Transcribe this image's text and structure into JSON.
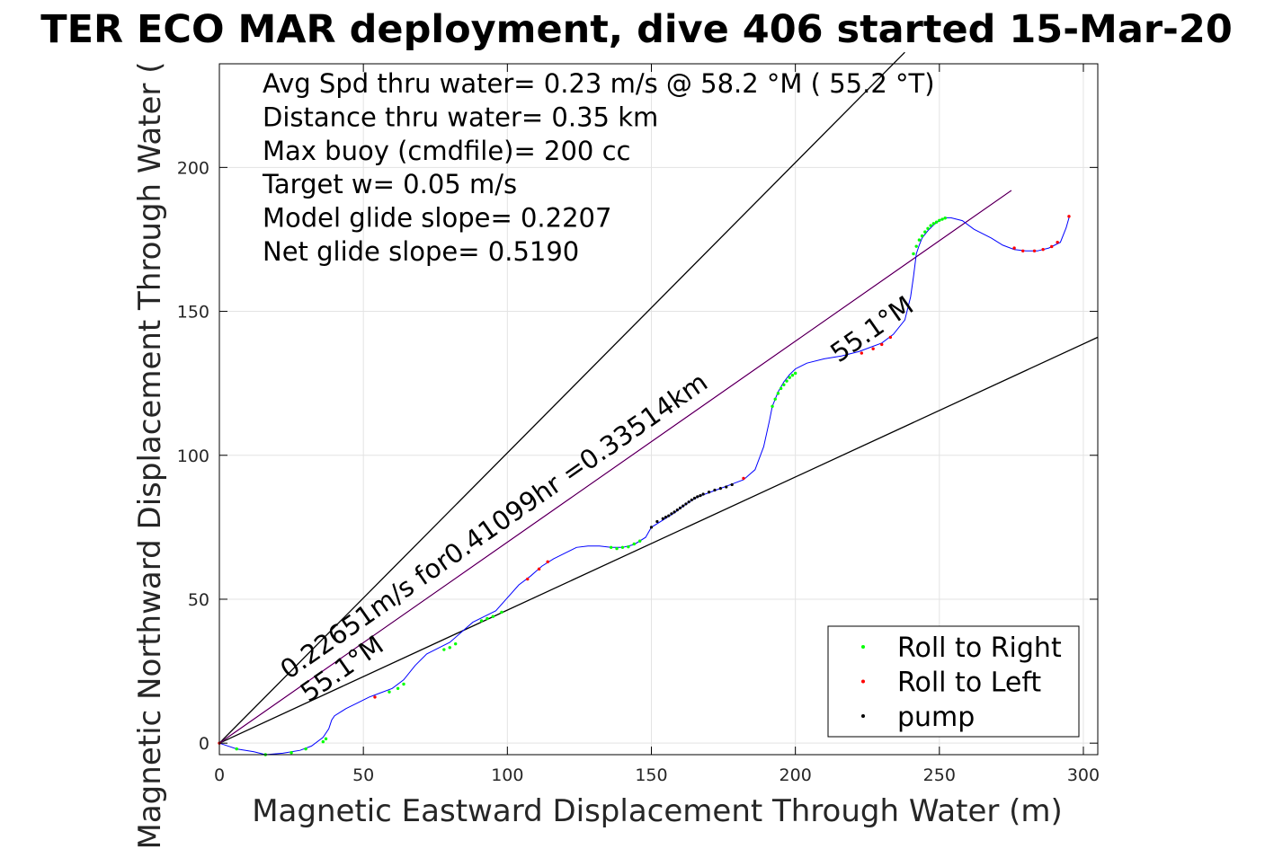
{
  "chart_data": {
    "type": "line",
    "title": "TER ECO MAR deployment, dive 406 started 15-Mar-20",
    "xlabel": "Magnetic Eastward Displacement Through Water (m)",
    "ylabel": "Magnetic Northward Displacement Through Water (",
    "xlim": [
      0,
      305
    ],
    "ylim": [
      -4,
      236
    ],
    "xticks": [
      0,
      50,
      100,
      150,
      200,
      250,
      300
    ],
    "yticks": [
      0,
      50,
      100,
      150,
      200
    ],
    "grid": true,
    "legend_position": "bottom-right",
    "stats": [
      "Avg Spd thru water=  0.23 m/s @  58.2 °M ( 55.2 °T)",
      "Distance thru water=  0.35 km",
      "Max buoy (cmdfile)= 200 cc",
      "Target w= 0.05 m/s",
      "Model glide slope= 0.2207",
      "Net glide slope= 0.5190"
    ],
    "annotations": [
      {
        "text": "0.22651m/s for0.41099hr =0.33514km",
        "x": 24,
        "y": 22,
        "angle": 34.9
      },
      {
        "text": "55.1°M",
        "x": 31,
        "y": 14,
        "angle": 34.9
      },
      {
        "text": "55.1°M",
        "x": 215,
        "y": 132,
        "angle": 34.9
      }
    ],
    "reference_lines": [
      {
        "name": "cone-upper",
        "color": "#000000",
        "x": [
          0,
          238
        ],
        "y": [
          0,
          240
        ]
      },
      {
        "name": "cone-lower",
        "color": "#000000",
        "x": [
          0,
          305
        ],
        "y": [
          0,
          141
        ]
      },
      {
        "name": "net-heading",
        "color": "#cc00cc",
        "x": [
          0,
          275
        ],
        "y": [
          0,
          192
        ]
      },
      {
        "name": "net-heading-dark",
        "color": "#000000",
        "x": [
          0,
          275
        ],
        "y": [
          0,
          192
        ]
      }
    ],
    "track": {
      "name": "track",
      "color": "#0000ff",
      "x": [
        0,
        6,
        12,
        16,
        22,
        28,
        32,
        36,
        38,
        39,
        40,
        44,
        48,
        52,
        56,
        60,
        64,
        68,
        72,
        76,
        80,
        84,
        88,
        92,
        96,
        100,
        104,
        108,
        112,
        116,
        120,
        124,
        128,
        132,
        136,
        140,
        144,
        148,
        150,
        154,
        158,
        162,
        166,
        170,
        174,
        178,
        182,
        186,
        189,
        191,
        192,
        194,
        196,
        198,
        200,
        204,
        210,
        216,
        222,
        226,
        230,
        234,
        238,
        240,
        241,
        242,
        243,
        244,
        246,
        248,
        250,
        252,
        254,
        258,
        262,
        268,
        272,
        276,
        280,
        284,
        288,
        292,
        294,
        295
      ],
      "y": [
        0,
        -2,
        -3,
        -4,
        -3.5,
        -2.5,
        -1,
        2,
        5,
        8,
        9.5,
        12,
        14,
        16,
        17.5,
        19,
        22,
        27,
        31,
        33,
        35,
        38.5,
        42,
        44,
        46,
        50.5,
        55,
        58,
        61.5,
        64,
        66,
        68,
        68.5,
        68.5,
        68,
        68,
        69,
        71.5,
        75,
        77.5,
        80,
        83,
        85.5,
        87,
        88.5,
        90,
        91.5,
        95,
        103,
        112,
        117,
        122,
        125.5,
        128,
        130,
        132,
        133.5,
        134.5,
        136,
        137.5,
        139,
        142,
        147,
        155,
        162,
        170,
        173,
        175.5,
        178,
        180,
        181.5,
        182.5,
        182.5,
        181.5,
        178.5,
        175.5,
        173,
        171.5,
        171,
        171,
        172,
        174,
        179,
        182.5
      ]
    },
    "series": [
      {
        "name": "Roll to Right",
        "color": "#00ff00",
        "x": [
          6,
          16,
          25,
          30,
          36,
          37,
          59,
          62,
          64,
          78,
          80,
          82,
          91,
          93,
          95,
          98,
          136,
          138,
          140,
          142,
          144,
          146,
          192,
          193,
          194,
          195,
          196,
          197,
          198,
          199,
          200,
          241,
          242,
          243,
          244,
          245,
          246,
          247,
          248,
          249,
          250,
          251,
          252
        ],
        "y": [
          -2,
          -4,
          -3.3,
          -2,
          0.5,
          1.5,
          17.8,
          19,
          20.5,
          32.5,
          33.2,
          34.5,
          42.5,
          43.3,
          44,
          45.5,
          68,
          67.6,
          68,
          68.2,
          69.2,
          70.2,
          117,
          119.5,
          121.5,
          123.2,
          124.5,
          125.8,
          127,
          127.8,
          128.5,
          170,
          172.6,
          174.8,
          176.2,
          177.6,
          178.8,
          179.8,
          180.5,
          181,
          181.6,
          182,
          182.4
        ]
      },
      {
        "name": "Roll to Left",
        "color": "#ff0000",
        "x": [
          0,
          54,
          107,
          111,
          114,
          182,
          223,
          227,
          230,
          233,
          276,
          279,
          283,
          286,
          289,
          291,
          295
        ],
        "y": [
          0,
          16,
          57,
          60.5,
          63,
          92,
          135.5,
          137,
          138.5,
          141,
          172,
          171,
          171,
          171.5,
          172.5,
          174,
          183
        ]
      },
      {
        "name": "pump",
        "color": "#000000",
        "x": [
          150,
          152,
          154,
          155,
          156,
          157,
          158,
          159,
          160,
          161,
          162,
          163,
          164,
          165,
          166,
          167,
          168,
          170,
          172,
          174,
          176,
          178
        ],
        "y": [
          75,
          77,
          78,
          78.5,
          79,
          79.7,
          80.3,
          81,
          81.7,
          82.4,
          83.1,
          83.8,
          84.5,
          85.1,
          85.6,
          86,
          86.5,
          87.2,
          87.9,
          88.5,
          89,
          89.8
        ]
      }
    ]
  }
}
